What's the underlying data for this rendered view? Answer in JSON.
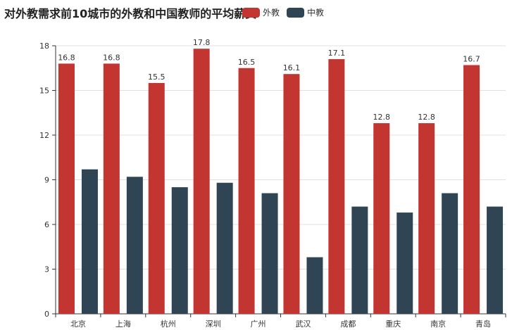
{
  "chart_data": {
    "type": "bar",
    "title": "对外教需求前10城市的外教和中国教师的平均薪资",
    "categories": [
      "北京",
      "上海",
      "杭州",
      "深圳",
      "广州",
      "武汉",
      "成都",
      "重庆",
      "南京",
      "青岛"
    ],
    "series": [
      {
        "name": "外教",
        "color": "#c23531",
        "values": [
          16.8,
          16.8,
          15.5,
          17.8,
          16.5,
          16.1,
          17.1,
          12.8,
          12.8,
          16.7
        ],
        "show_labels": true
      },
      {
        "name": "中教",
        "color": "#2f4554",
        "values": [
          9.7,
          9.2,
          8.5,
          8.8,
          8.1,
          3.8,
          7.2,
          6.8,
          8.1,
          7.2
        ],
        "show_labels": false
      }
    ],
    "ylim": [
      0,
      18
    ],
    "yticks": [
      "0",
      "3",
      "6",
      "9",
      "12",
      "15",
      "18"
    ],
    "grid": "horizontal",
    "legend": "top-center"
  }
}
